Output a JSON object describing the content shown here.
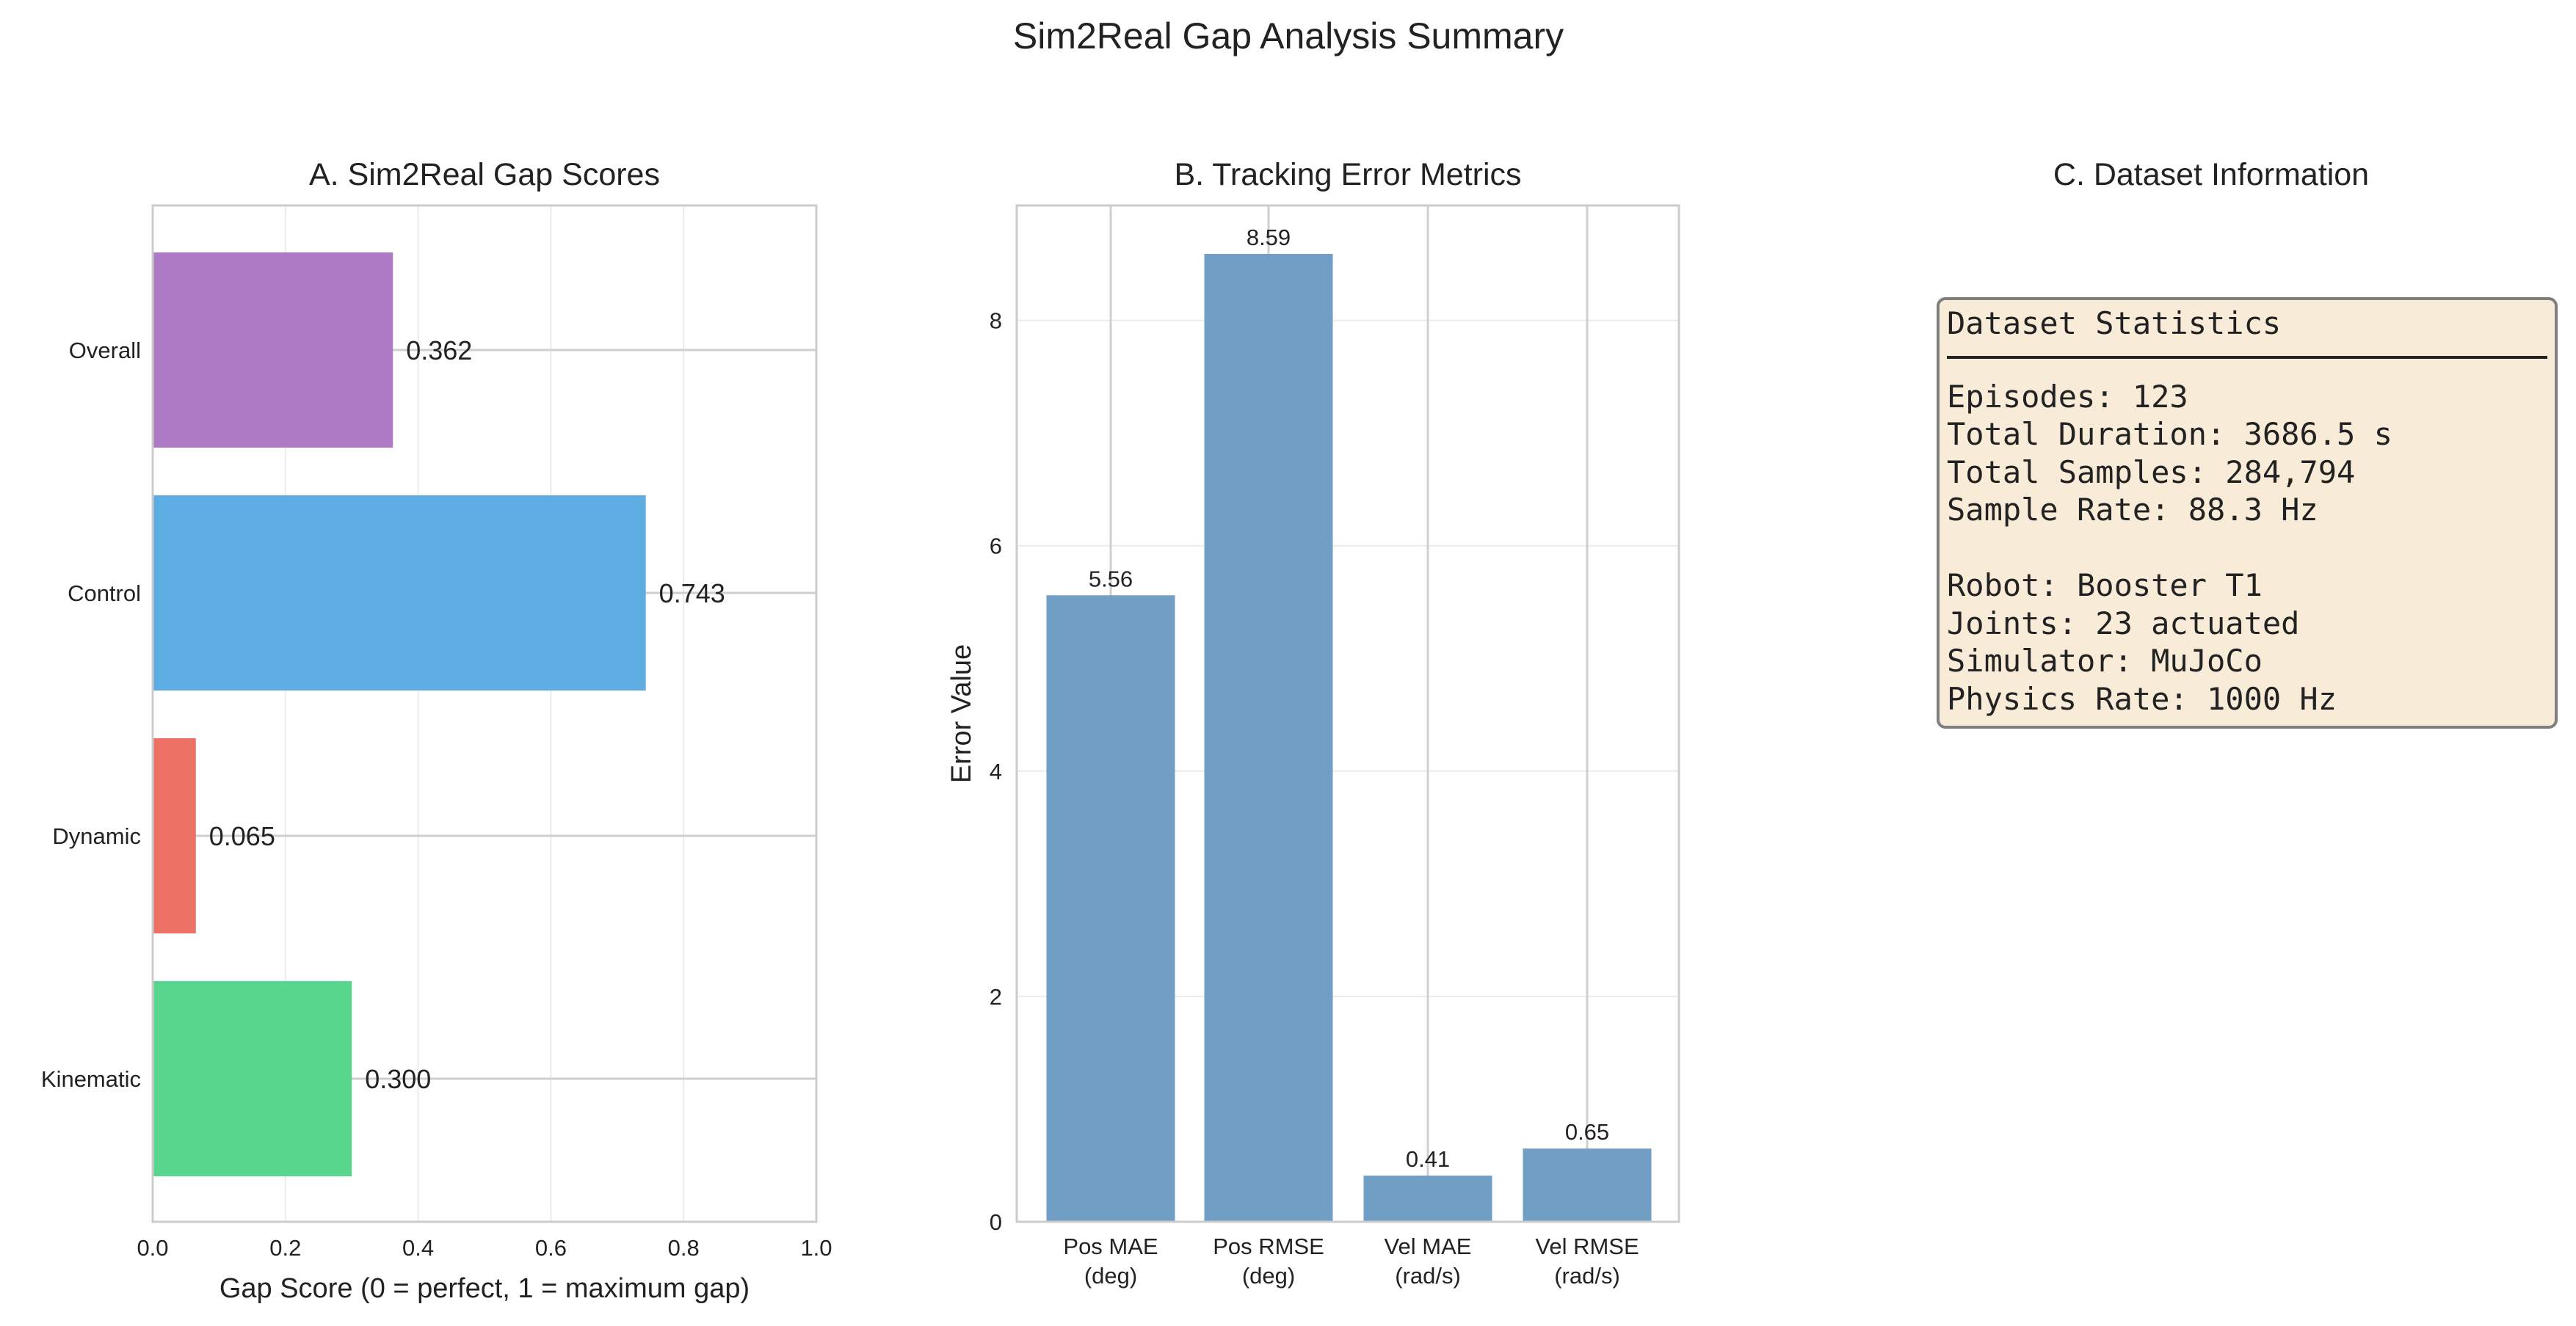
{
  "title": "Sim2Real Gap Analysis Summary",
  "chart_data": [
    {
      "type": "bar",
      "orientation": "horizontal",
      "title": "A. Sim2Real Gap Scores",
      "xlabel": "Gap Score (0 = perfect, 1 = maximum gap)",
      "ylabel": "",
      "categories": [
        "Kinematic",
        "Dynamic",
        "Control",
        "Overall"
      ],
      "values": [
        0.3,
        0.065,
        0.743,
        0.362
      ],
      "data_labels": [
        "0.300",
        "0.065",
        "0.743",
        "0.362"
      ],
      "colors": [
        "#58d68d",
        "#ec7063",
        "#5dade2",
        "#af7ac5"
      ],
      "xlim": [
        0,
        1.0
      ],
      "xticks": [
        "0.0",
        "0.2",
        "0.4",
        "0.6",
        "0.8",
        "1.0"
      ],
      "grid": true
    },
    {
      "type": "bar",
      "title": "B. Tracking Error Metrics",
      "xlabel": "",
      "ylabel": "Error Value",
      "categories": [
        [
          "Pos MAE",
          "(deg)"
        ],
        [
          "Pos RMSE",
          "(deg)"
        ],
        [
          "Vel MAE",
          "(rad/s)"
        ],
        [
          "Vel RMSE",
          "(rad/s)"
        ]
      ],
      "values": [
        5.56,
        8.59,
        0.41,
        0.65
      ],
      "data_labels": [
        "5.56",
        "8.59",
        "0.41",
        "0.65"
      ],
      "color": "#6b9bc3",
      "ylim": [
        0,
        9.02
      ],
      "yticks": [
        "0",
        "2",
        "4",
        "6",
        "8"
      ],
      "grid": true
    }
  ],
  "panel_c": {
    "title": "C. Dataset Information",
    "box_title": "Dataset Statistics",
    "lines_1": [
      "Episodes: 123",
      "Total Duration: 3686.5 s",
      "Total Samples: 284,794",
      "Sample Rate: 88.3 Hz"
    ],
    "lines_2": [
      "Robot: Booster T1",
      "Joints: 23 actuated",
      "Simulator: MuJoCo",
      "Physics Rate: 1000 Hz"
    ]
  }
}
